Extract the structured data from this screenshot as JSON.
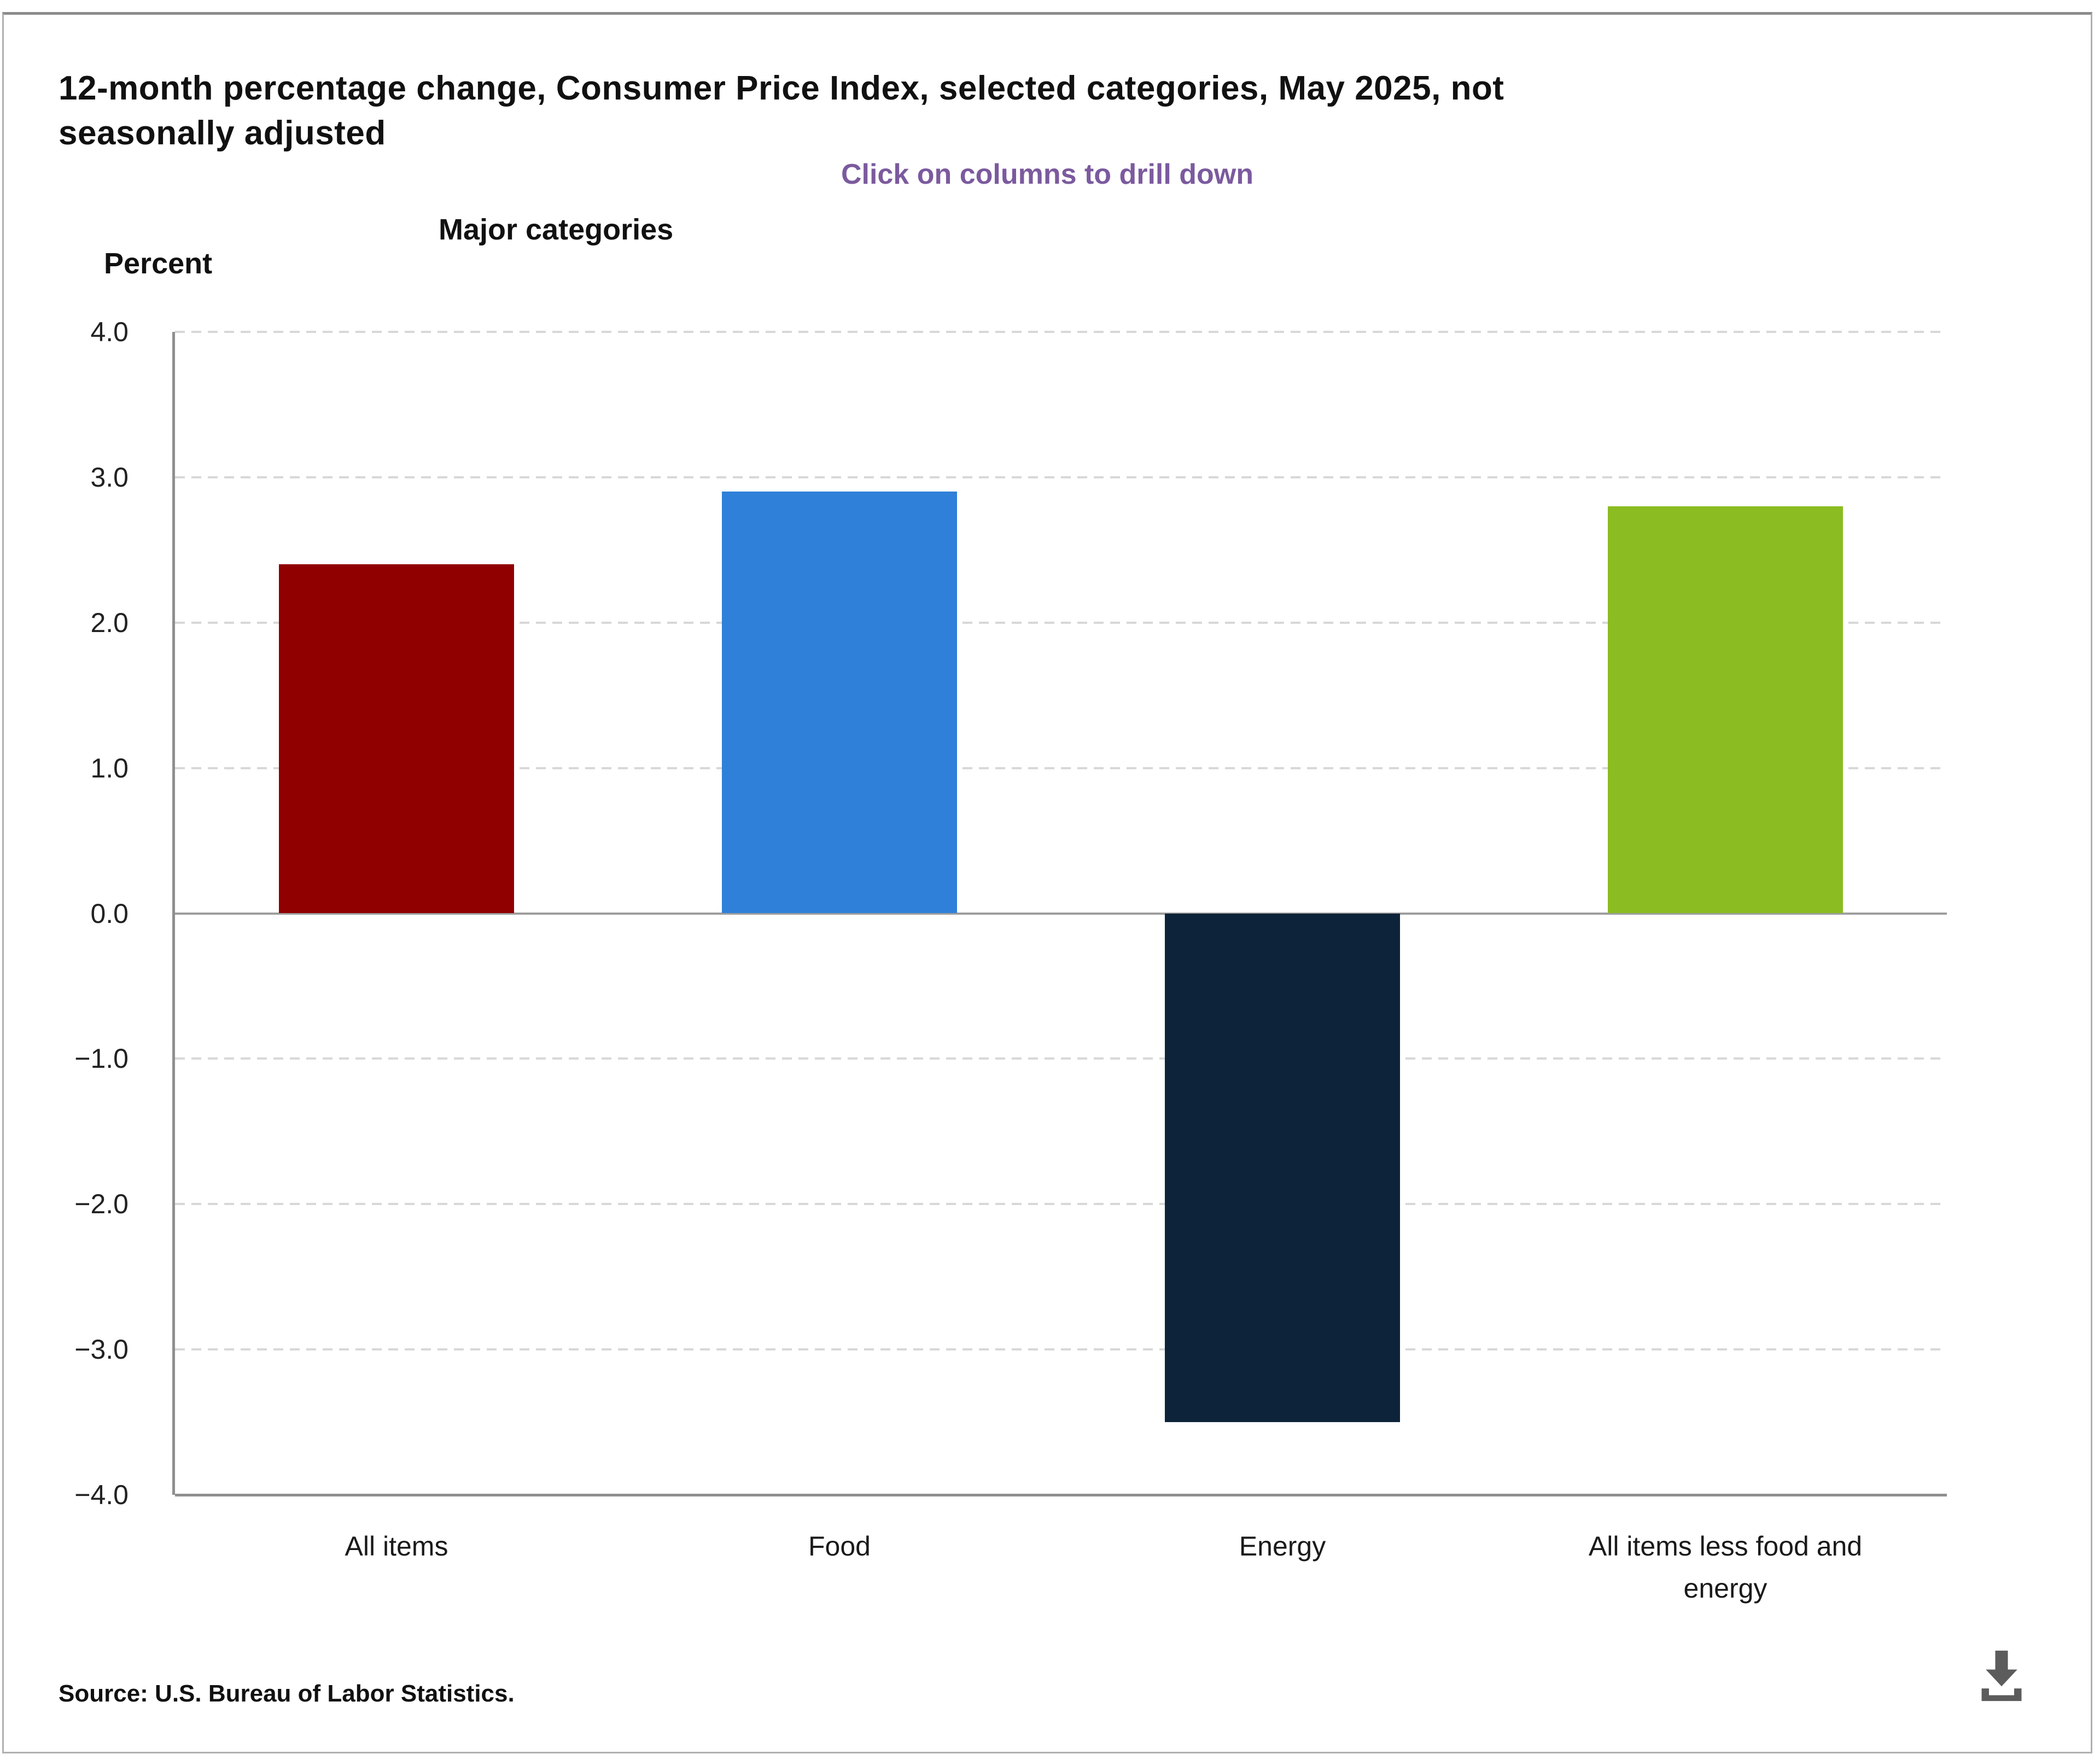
{
  "header": {
    "title": "12-month percentage change, Consumer Price Index, selected categories, May 2025, not seasonally adjusted",
    "title_lines": [
      "12-month percentage change, Consumer Price Index, selected categories, May 2025, not",
      "seasonally adjusted"
    ],
    "subtitle": "Click on columns to drill down",
    "subtitle_color": "#7b5a9e"
  },
  "chart_data": {
    "type": "bar",
    "title": "Major categories",
    "ylabel": "Percent",
    "categories": [
      "All items",
      "Food",
      "Energy",
      "All items less food and energy"
    ],
    "values": [
      2.4,
      2.9,
      -3.5,
      2.8
    ],
    "bar_colors": [
      "#910000",
      "#2f80d8",
      "#0d2339",
      "#8bbc21"
    ],
    "ylim": [
      -4.0,
      4.0
    ],
    "ytick_step": 1.0,
    "ytick_labels": [
      "4.0",
      "3.0",
      "2.0",
      "1.0",
      "0.0",
      "−1.0",
      "−2.0",
      "−3.0",
      "−4.0"
    ],
    "grid": "dashed_horizontal",
    "legend": "none"
  },
  "footer": {
    "source": "Source: U.S. Bureau of Labor Statistics."
  },
  "icons": {
    "download": "download-icon"
  }
}
